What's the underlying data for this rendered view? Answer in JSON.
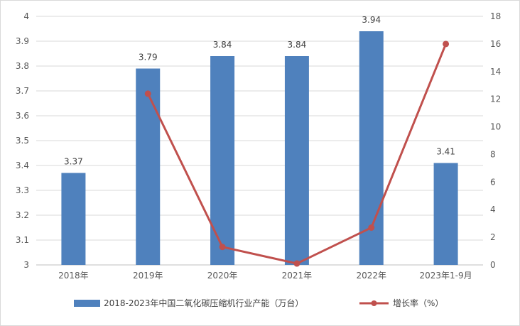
{
  "chart_data": {
    "type": "bar+line",
    "categories": [
      "2018年",
      "2019年",
      "2020年",
      "2021年",
      "2022年",
      "2023年1-9月"
    ],
    "series": [
      {
        "name": "2018-2023年中国二氧化碳压缩机行业产能（万台）",
        "type": "bar",
        "axis": "left",
        "color": "#4f81bd",
        "values": [
          3.37,
          3.79,
          3.84,
          3.84,
          3.94,
          3.41
        ],
        "labels": [
          "3.37",
          "3.79",
          "3.84",
          "3.84",
          "3.94",
          "3.41"
        ]
      },
      {
        "name": "增长率（%）",
        "type": "line",
        "axis": "right",
        "color": "#c0504d",
        "values": [
          null,
          12.4,
          1.3,
          0.1,
          2.7,
          16.0
        ]
      }
    ],
    "y_left": {
      "min": 3,
      "max": 4,
      "step": 0.1,
      "ticks": [
        "3",
        "3.1",
        "3.2",
        "3.3",
        "3.4",
        "3.5",
        "3.6",
        "3.7",
        "3.8",
        "3.9",
        "4"
      ]
    },
    "y_right": {
      "min": 0,
      "max": 18,
      "step": 2,
      "ticks": [
        "0",
        "2",
        "4",
        "6",
        "8",
        "10",
        "12",
        "14",
        "16",
        "18"
      ]
    },
    "grid": true,
    "legend_position": "bottom"
  }
}
